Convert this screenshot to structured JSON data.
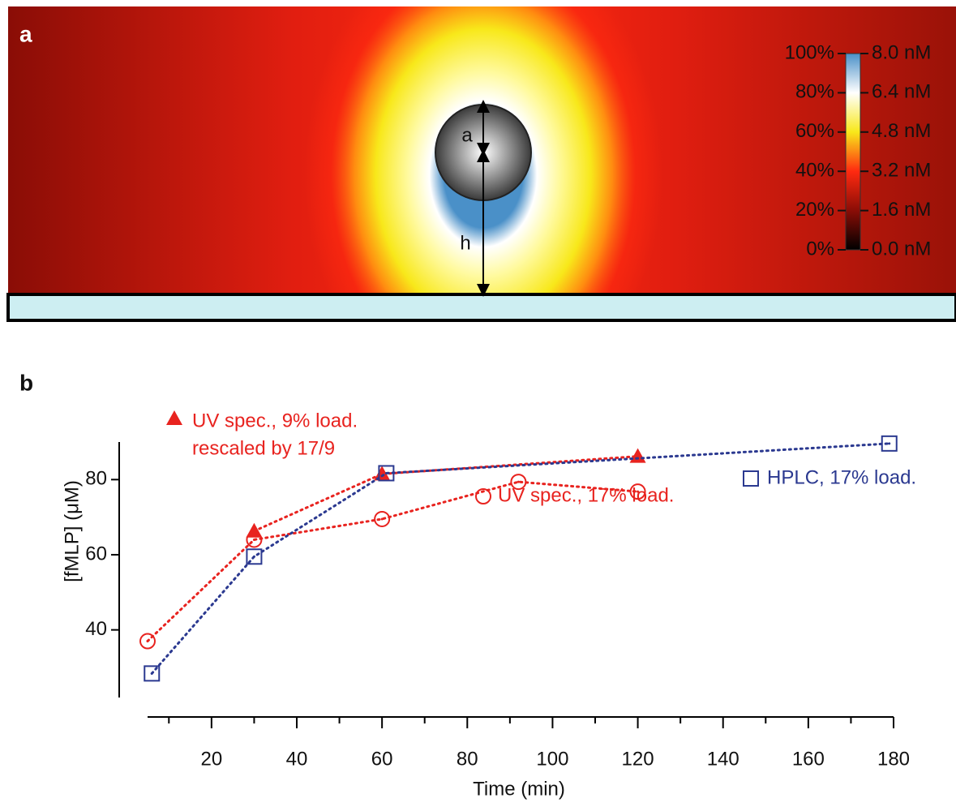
{
  "chart_data": [
    {
      "type": "colormap",
      "panel_label": "a",
      "annotations": [
        "a",
        "h"
      ],
      "clim": [
        0,
        100
      ],
      "cticks": [
        {
          "value": 0,
          "label": "0%"
        },
        {
          "value": 20,
          "label": "20%"
        },
        {
          "value": 40,
          "label": "40%"
        },
        {
          "value": 60,
          "label": "60%"
        },
        {
          "value": 80,
          "label": "80%"
        },
        {
          "value": 100,
          "label": "100%"
        }
      ],
      "c2lim": [
        0,
        8
      ],
      "c2ticks": [
        {
          "value": 0,
          "label": "0.0 nM"
        },
        {
          "value": 1.6,
          "label": "1.6 nM"
        },
        {
          "value": 3.2,
          "label": "3.2 nM"
        },
        {
          "value": 4.8,
          "label": "4.8 nM"
        },
        {
          "value": 6.4,
          "label": "6.4 nM"
        },
        {
          "value": 8,
          "label": "8.0 nM"
        }
      ]
    },
    {
      "type": "line",
      "panel_label": "b",
      "x_label": "Time (min)",
      "y_label": "[fMLP] (μM)",
      "xlim": [
        5,
        180
      ],
      "ylim": [
        22,
        90
      ],
      "xticks": [
        20,
        40,
        60,
        80,
        100,
        120,
        140,
        160,
        180
      ],
      "xminor_ticks": [
        10,
        30,
        50,
        70,
        90,
        110,
        130,
        150,
        170
      ],
      "yticks": [
        40,
        60,
        80
      ],
      "series": [
        {
          "name": "UV spec., 9% load.",
          "color": "#e8231f",
          "marker": "triangle",
          "x": [
            30,
            60,
            120
          ],
          "values": [
            66.3,
            81.5,
            86.2
          ]
        },
        {
          "name": "UV spec., 17% load.",
          "color": "#e8231f",
          "marker": "circle",
          "x": [
            5,
            30,
            60,
            92,
            120
          ],
          "values": [
            37,
            64,
            69.5,
            79.4,
            76.8
          ]
        },
        {
          "name": "HPLC, 17% load.",
          "color": "#2b3990",
          "marker": "square",
          "x": [
            6,
            30,
            61,
            179
          ],
          "values": [
            28.4,
            59.5,
            81.7,
            89.6
          ]
        }
      ],
      "annotations": [
        "rescaled by 17/9"
      ]
    }
  ]
}
